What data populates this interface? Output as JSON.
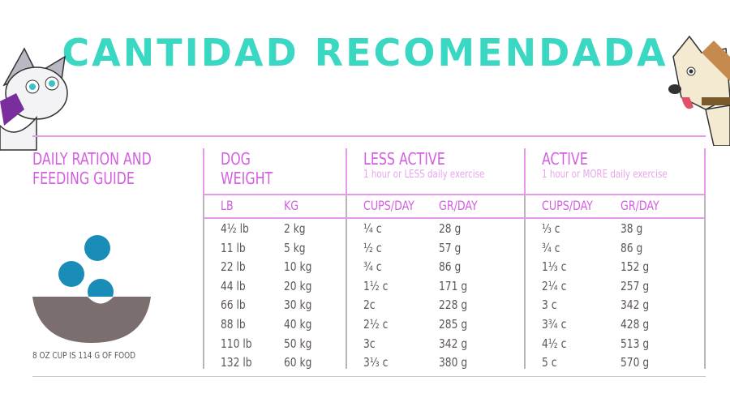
{
  "title": "CANTIDAD RECOMENDADA",
  "guide": {
    "heading": "DAILY RATION AND FEEDING GUIDE",
    "line1": "DAILY RATION AND",
    "line2": "FEEDING GUIDE",
    "caption": "8 OZ CUP IS 114 G OF FOOD"
  },
  "groups": {
    "weight": {
      "line1": "DOG",
      "line2": "WEIGHT"
    },
    "less": {
      "title": "LESS ACTIVE",
      "subtitle": "1 hour or LESS daily exercise"
    },
    "active": {
      "title": "ACTIVE",
      "subtitle": "1 hour or MORE daily exercise"
    }
  },
  "columns": [
    "LB",
    "KG",
    "CUPS/DAY",
    "GR/DAY",
    "CUPS/DAY",
    "GR/DAY"
  ],
  "rows": [
    [
      "4½ lb",
      "2 kg",
      "¼ c",
      "28 g",
      "⅓ c",
      "38 g"
    ],
    [
      "11 lb",
      "5 kg",
      "½ c",
      "57 g",
      "¾ c",
      "86 g"
    ],
    [
      "22 lb",
      "10 kg",
      "¾ c",
      "86 g",
      "1⅓ c",
      "152 g"
    ],
    [
      "44 lb",
      "20 kg",
      "1½ c",
      "171 g",
      "2¼ c",
      "257 g"
    ],
    [
      "66 lb",
      "30 kg",
      "2c",
      "228 g",
      "3 c",
      "342 g"
    ],
    [
      "88 lb",
      "40 kg",
      "2½ c",
      "285 g",
      "3¾ c",
      "428 g"
    ],
    [
      "110 lb",
      "50 kg",
      "3c",
      "342 g",
      "4½ c",
      "513 g"
    ],
    [
      "132 lb",
      "60 kg",
      "3⅓ c",
      "380 g",
      "5 c",
      "570 g"
    ]
  ],
  "colors": {
    "title": "#3ad8c3",
    "accent": "#d45fe0",
    "text": "#5c5559",
    "food": "#1a8cb8",
    "bowl": "#7a6e6e"
  }
}
